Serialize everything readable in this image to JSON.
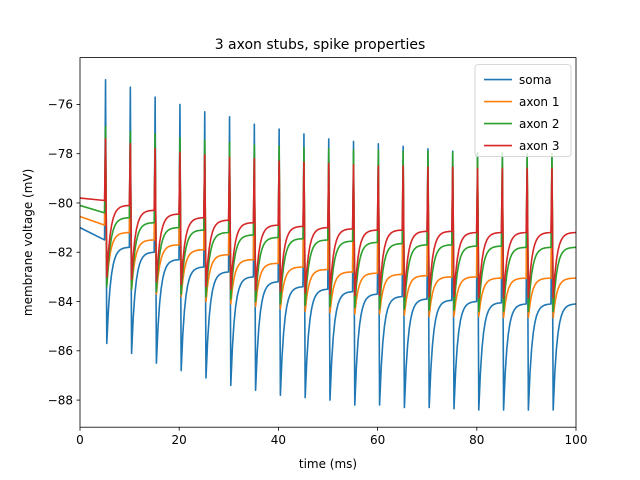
{
  "chart_data": {
    "type": "line",
    "title": "3 axon stubs, spike properties",
    "xlabel": "time (ms)",
    "ylabel": "membrane voltage (mV)",
    "xlim": [
      0,
      100
    ],
    "ylim": [
      -89.1,
      -74.1
    ],
    "xticks": [
      0,
      20,
      40,
      60,
      80,
      100
    ],
    "yticks": [
      -88,
      -86,
      -84,
      -82,
      -80,
      -78,
      -76
    ],
    "xtick_labels": [
      "0",
      "20",
      "40",
      "60",
      "80",
      "100"
    ],
    "ytick_labels": [
      "−88",
      "−86",
      "−84",
      "−82",
      "−80",
      "−78",
      "−76"
    ],
    "legend_position": "top-right",
    "grid": false,
    "spike_times": [
      5,
      10,
      15,
      20,
      25,
      30,
      35,
      40,
      45,
      50,
      55,
      60,
      65,
      70,
      75,
      80,
      85,
      90,
      95
    ],
    "series": [
      {
        "name": "soma",
        "color": "#1f77b4",
        "start_v": -81.0,
        "baseline_pre_spike": [
          -81.5,
          -81.8,
          -82.0,
          -82.3,
          -82.6,
          -82.8,
          -83.0,
          -83.2,
          -83.4,
          -83.5,
          -83.6,
          -83.7,
          -83.8,
          -83.9,
          -83.95,
          -84.0,
          -84.05,
          -84.1,
          -84.1
        ],
        "end_v": -84.1,
        "spike_peaks": [
          -75.0,
          -75.3,
          -75.7,
          -76.0,
          -76.3,
          -76.5,
          -76.8,
          -77.0,
          -77.2,
          -77.4,
          -77.5,
          -77.6,
          -77.7,
          -77.8,
          -77.9,
          -78.0,
          -78.0,
          -78.1,
          -78.1
        ],
        "spike_troughs": [
          -85.7,
          -86.1,
          -86.5,
          -86.8,
          -87.1,
          -87.4,
          -87.6,
          -87.8,
          -87.9,
          -88.0,
          -88.2,
          -88.2,
          -88.3,
          -88.3,
          -88.35,
          -88.4,
          -88.4,
          -88.4,
          -88.4
        ]
      },
      {
        "name": "axon 1",
        "color": "#ff7f0e",
        "start_v": -80.55,
        "baseline_pre_spike": [
          -80.9,
          -81.2,
          -81.5,
          -81.7,
          -81.9,
          -82.1,
          -82.3,
          -82.45,
          -82.6,
          -82.7,
          -82.8,
          -82.85,
          -82.9,
          -82.95,
          -83.0,
          -83.0,
          -83.05,
          -83.05,
          -83.05
        ],
        "end_v": -83.05,
        "spike_peaks": [
          -77.3,
          -77.5,
          -77.7,
          -77.8,
          -77.9,
          -78.0,
          -78.1,
          -78.15,
          -78.2,
          -78.25,
          -78.3,
          -78.3,
          -78.35,
          -78.4,
          -78.4,
          -78.4,
          -78.45,
          -78.45,
          -78.45
        ],
        "spike_troughs": [
          -83.3,
          -83.5,
          -83.7,
          -83.8,
          -84.0,
          -84.1,
          -84.2,
          -84.3,
          -84.4,
          -84.45,
          -84.5,
          -84.5,
          -84.55,
          -84.6,
          -84.6,
          -84.6,
          -84.65,
          -84.65,
          -84.65
        ]
      },
      {
        "name": "axon 2",
        "color": "#2ca02c",
        "start_v": -80.1,
        "baseline_pre_spike": [
          -80.4,
          -80.6,
          -80.8,
          -81.0,
          -81.1,
          -81.2,
          -81.3,
          -81.4,
          -81.45,
          -81.5,
          -81.55,
          -81.6,
          -81.65,
          -81.7,
          -81.7,
          -81.75,
          -81.75,
          -81.8,
          -81.8
        ],
        "end_v": -81.8,
        "spike_peaks": [
          -76.9,
          -77.1,
          -77.2,
          -77.35,
          -77.45,
          -77.55,
          -77.65,
          -77.7,
          -77.75,
          -77.8,
          -77.85,
          -77.85,
          -77.9,
          -77.9,
          -77.95,
          -77.95,
          -77.95,
          -78.0,
          -78.0
        ],
        "spike_troughs": [
          -83.4,
          -83.5,
          -83.6,
          -83.7,
          -83.8,
          -83.9,
          -84.0,
          -84.1,
          -84.15,
          -84.2,
          -84.25,
          -84.3,
          -84.3,
          -84.35,
          -84.35,
          -84.4,
          -84.4,
          -84.4,
          -84.4
        ]
      },
      {
        "name": "axon 3",
        "color": "#d62728",
        "start_v": -79.8,
        "baseline_pre_spike": [
          -79.9,
          -80.1,
          -80.3,
          -80.45,
          -80.6,
          -80.7,
          -80.8,
          -80.9,
          -80.95,
          -81.0,
          -81.05,
          -81.1,
          -81.1,
          -81.15,
          -81.15,
          -81.2,
          -81.2,
          -81.2,
          -81.2
        ],
        "end_v": -81.2,
        "spike_peaks": [
          -77.4,
          -77.6,
          -77.8,
          -77.95,
          -78.05,
          -78.15,
          -78.2,
          -78.3,
          -78.35,
          -78.4,
          -78.45,
          -78.5,
          -78.5,
          -78.55,
          -78.55,
          -78.6,
          -78.6,
          -78.6,
          -78.6
        ],
        "spike_troughs": [
          -83.0,
          -83.1,
          -83.2,
          -83.3,
          -83.4,
          -83.5,
          -83.55,
          -83.6,
          -83.65,
          -83.7,
          -83.75,
          -83.75,
          -83.8,
          -83.8,
          -83.8,
          -83.85,
          -83.85,
          -83.85,
          -83.85
        ]
      }
    ]
  }
}
